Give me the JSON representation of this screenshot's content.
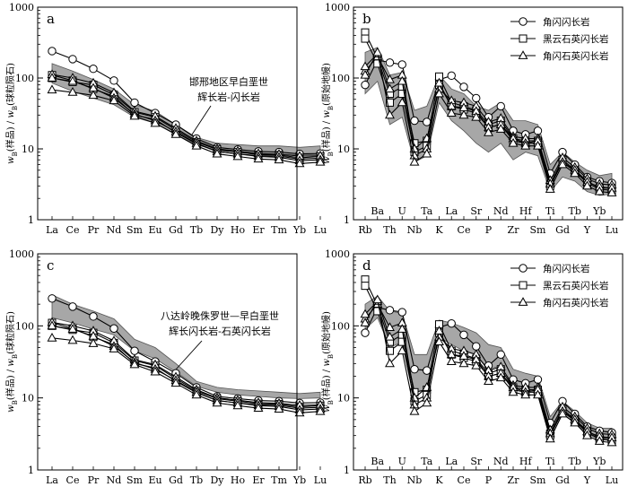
{
  "figure": {
    "colors": {
      "band": "#a7a7a7",
      "band_stroke": "#555555",
      "line": "#000000",
      "marker_fill": "#ffffff"
    }
  },
  "legend": {
    "entries": [
      {
        "label": "角闪闪长岩",
        "marker": "circle"
      },
      {
        "label": "黑云石英闪长岩",
        "marker": "square"
      },
      {
        "label": "角闪石英闪长岩",
        "marker": "triangle"
      }
    ]
  },
  "chart_data": [
    {
      "id": "a",
      "type": "line",
      "panel_label": "a",
      "xlabel": "",
      "ylabel": "wB(样品)/wB(球粒陨石)",
      "ylabel_parts": {
        "w": "w",
        "b1": "B",
        "mid": "(样品) / ",
        "w2": "w",
        "b2": "B",
        "end": "(球粒陨石)"
      },
      "yscale": "log",
      "ylim": [
        1,
        1000
      ],
      "yticks": [
        "1",
        "10",
        "100",
        "1000"
      ],
      "categories": [
        "La",
        "Ce",
        "Pr",
        "Nd",
        "Sm",
        "Eu",
        "Gd",
        "Tb",
        "Dy",
        "Ho",
        "Er",
        "Tm",
        "Yb",
        "Lu"
      ],
      "band": {
        "label_lines": [
          "邯邢地区早白垩世",
          "辉长岩-闪长岩"
        ],
        "upper": [
          160,
          125,
          95,
          70,
          42,
          34,
          22,
          14.5,
          12,
          11.5,
          11,
          11,
          10.5,
          11
        ],
        "lower": [
          85,
          65,
          52,
          42,
          28,
          23,
          16,
          11.5,
          9.5,
          9,
          8.6,
          8.5,
          8.2,
          8.3
        ]
      },
      "series": [
        {
          "name": "角闪闪长岩",
          "marker": "circle",
          "values": [
            240,
            185,
            135,
            92,
            45,
            32,
            22,
            14,
            10.5,
            9.8,
            9.2,
            9,
            8.5,
            8.6
          ]
        },
        {
          "name": "黑云石英闪长岩",
          "marker": "square",
          "values": [
            100,
            88,
            80,
            58,
            33,
            28,
            18.5,
            12.5,
            9.8,
            9,
            8.3,
            8.2,
            7.5,
            7.8
          ]
        },
        {
          "name": "黑云石英闪长岩",
          "marker": "square",
          "values": [
            110,
            92,
            70,
            55,
            30,
            26,
            17,
            11.8,
            9.2,
            8.5,
            8,
            7.9,
            7.2,
            7.4
          ]
        },
        {
          "name": "角闪石英闪长岩",
          "marker": "triangle",
          "values": [
            112,
            100,
            85,
            62,
            34,
            29,
            19.5,
            13,
            10,
            9.3,
            8.6,
            8.4,
            7.9,
            8
          ]
        },
        {
          "name": "角闪石英闪长岩",
          "marker": "triangle",
          "values": [
            100,
            90,
            72,
            52,
            31,
            25,
            17.5,
            12,
            9.2,
            8.5,
            7.8,
            7.6,
            6.8,
            7
          ]
        },
        {
          "name": "角闪石英闪长岩",
          "marker": "triangle",
          "values": [
            68,
            63,
            57,
            48,
            29,
            23,
            16,
            11,
            8.5,
            7.8,
            7.2,
            7,
            6.2,
            6.5
          ]
        }
      ]
    },
    {
      "id": "b",
      "type": "line",
      "panel_label": "b",
      "xlabel": "",
      "ylabel": "wB(样品)/wB(原始地幔)",
      "ylabel_parts": {
        "w": "w",
        "b1": "B",
        "mid": "(样品) / ",
        "w2": "w",
        "b2": "B",
        "end": "(原始地幔)"
      },
      "yscale": "log",
      "ylim": [
        1,
        1000
      ],
      "yticks": [
        "1",
        "10",
        "100",
        "1000"
      ],
      "categories": [
        "Rb",
        "Ba",
        "Th",
        "U",
        "Nb",
        "Ta",
        "K",
        "La",
        "Ce",
        "Sr",
        "P",
        "Nd",
        "Zr",
        "Hf",
        "Sm",
        "Ti",
        "Gd",
        "Tb",
        "Y",
        "Yb",
        "Lu"
      ],
      "top_labels": [
        "Ba",
        "U",
        "Ta",
        "La",
        "Sr",
        "Nd",
        "Hf",
        "Ti",
        "Tb",
        "Yb"
      ],
      "bottom_labels": [
        "Rb",
        "Th",
        "Nb",
        "K",
        "Ce",
        "P",
        "Zr",
        "Sm",
        "Gd",
        "Y",
        "Lu"
      ],
      "band": {
        "upper": [
          230,
          270,
          110,
          120,
          35,
          40,
          110,
          70,
          60,
          40,
          35,
          45,
          25,
          25,
          22,
          6,
          9,
          6.5,
          5,
          4.2,
          4.5
        ],
        "lower": [
          60,
          90,
          22,
          28,
          6.5,
          8,
          45,
          25,
          18,
          12,
          9,
          12,
          7,
          9,
          8,
          2.5,
          4,
          3.5,
          2.5,
          2.2,
          2.3
        ]
      },
      "series": [
        {
          "name": "角闪闪长岩",
          "marker": "circle",
          "values": [
            80,
            180,
            165,
            155,
            25,
            24,
            95,
            108,
            75,
            52,
            28,
            40,
            18,
            16,
            18,
            4.5,
            9,
            6,
            4,
            3.5,
            3.3
          ]
        },
        {
          "name": "黑云石英闪长岩",
          "marker": "square",
          "values": [
            440,
            190,
            60,
            75,
            12,
            13,
            105,
            45,
            40,
            35,
            22,
            25,
            14,
            13,
            13,
            3.2,
            7,
            5,
            3.5,
            2.8,
            2.8
          ]
        },
        {
          "name": "黑云石英闪长岩",
          "marker": "square",
          "values": [
            360,
            160,
            45,
            60,
            9,
            11,
            80,
            40,
            36,
            32,
            20,
            22,
            13,
            12,
            12,
            3,
            6.5,
            4.8,
            3.3,
            2.7,
            2.6
          ]
        },
        {
          "name": "角闪石英闪长岩",
          "marker": "triangle",
          "values": [
            125,
            200,
            95,
            110,
            10,
            14,
            70,
            48,
            45,
            40,
            24,
            27,
            15,
            14,
            14,
            3.6,
            7.5,
            5.5,
            3.8,
            3.2,
            3.1
          ]
        },
        {
          "name": "角闪石英闪长岩",
          "marker": "triangle",
          "values": [
            145,
            220,
            70,
            90,
            8,
            10,
            85,
            40,
            38,
            34,
            20,
            22,
            14,
            12,
            13,
            3.2,
            6.5,
            5,
            3.4,
            2.9,
            2.8
          ]
        },
        {
          "name": "角闪石英闪长岩",
          "marker": "triangle",
          "values": [
            110,
            230,
            30,
            45,
            6.5,
            8.5,
            60,
            32,
            30,
            28,
            17,
            19,
            12,
            11,
            11,
            2.7,
            6,
            4.5,
            3,
            2.5,
            2.4
          ]
        }
      ]
    },
    {
      "id": "c",
      "type": "line",
      "panel_label": "c",
      "xlabel": "",
      "ylabel": "wB(样品)/wB(球粒陨石)",
      "ylabel_parts": {
        "w": "w",
        "b1": "B",
        "mid": "(样品) / ",
        "w2": "w",
        "b2": "B",
        "end": "(球粒陨石)"
      },
      "yscale": "log",
      "ylim": [
        1,
        1000
      ],
      "yticks": [
        "1",
        "10",
        "100",
        "1000"
      ],
      "categories": [
        "La",
        "Ce",
        "Pr",
        "Nd",
        "Sm",
        "Eu",
        "Gd",
        "Tb",
        "Dy",
        "Ho",
        "Er",
        "Tm",
        "Yb",
        "Lu"
      ],
      "band": {
        "label_lines": [
          "八达岭晚侏罗世—早白垩世",
          "辉长闪长岩-石英闪长岩"
        ],
        "upper": [
          270,
          200,
          160,
          125,
          65,
          50,
          30,
          17,
          14,
          13,
          12.5,
          12,
          11.5,
          12
        ],
        "lower": [
          130,
          110,
          90,
          75,
          45,
          35,
          23,
          14.5,
          12,
          11,
          10.5,
          10,
          9.8,
          10
        ]
      },
      "series": [
        {
          "name": "角闪闪长岩",
          "marker": "circle",
          "values": [
            240,
            185,
            135,
            92,
            45,
            32,
            22,
            14,
            10.5,
            9.8,
            9.2,
            9,
            8.5,
            8.6
          ]
        },
        {
          "name": "黑云石英闪长岩",
          "marker": "square",
          "values": [
            100,
            88,
            80,
            58,
            33,
            28,
            18.5,
            12.5,
            9.8,
            9,
            8.3,
            8.2,
            7.5,
            7.8
          ]
        },
        {
          "name": "黑云石英闪长岩",
          "marker": "square",
          "values": [
            110,
            92,
            70,
            55,
            30,
            26,
            17,
            11.8,
            9.2,
            8.5,
            8,
            7.9,
            7.2,
            7.4
          ]
        },
        {
          "name": "角闪石英闪长岩",
          "marker": "triangle",
          "values": [
            112,
            100,
            85,
            62,
            34,
            29,
            19.5,
            13,
            10,
            9.3,
            8.6,
            8.4,
            7.9,
            8
          ]
        },
        {
          "name": "角闪石英闪长岩",
          "marker": "triangle",
          "values": [
            100,
            90,
            72,
            52,
            31,
            25,
            17.5,
            12,
            9.2,
            8.5,
            7.8,
            7.6,
            6.8,
            7
          ]
        },
        {
          "name": "角闪石英闪长岩",
          "marker": "triangle",
          "values": [
            68,
            63,
            57,
            48,
            29,
            23,
            16,
            11,
            8.5,
            7.8,
            7.2,
            7,
            6.2,
            6.5
          ]
        }
      ]
    },
    {
      "id": "d",
      "type": "line",
      "panel_label": "d",
      "xlabel": "",
      "ylabel": "wB(样品)/wB(原始地幔)",
      "ylabel_parts": {
        "w": "w",
        "b1": "B",
        "mid": "(样品) / ",
        "w2": "w",
        "b2": "B",
        "end": "(原始地幔)"
      },
      "yscale": "log",
      "ylim": [
        1,
        1000
      ],
      "yticks": [
        "1",
        "10",
        "100",
        "1000"
      ],
      "categories": [
        "Rb",
        "Ba",
        "Th",
        "U",
        "Nb",
        "Ta",
        "K",
        "La",
        "Ce",
        "Sr",
        "P",
        "Nd",
        "Zr",
        "Hf",
        "Sm",
        "Ti",
        "Gd",
        "Tb",
        "Y",
        "Yb",
        "Lu"
      ],
      "top_labels": [
        "Ba",
        "U",
        "Ta",
        "La",
        "Sr",
        "Nd",
        "Hf",
        "Ti",
        "Tb",
        "Yb"
      ],
      "bottom_labels": [
        "Rb",
        "Th",
        "Nb",
        "K",
        "Ce",
        "P",
        "Zr",
        "Sm",
        "Gd",
        "Y",
        "Lu"
      ],
      "band": {
        "upper": [
          200,
          260,
          160,
          150,
          40,
          40,
          120,
          110,
          95,
          80,
          55,
          50,
          25,
          22,
          20,
          5.5,
          9,
          6.5,
          4.5,
          3.8,
          3.8
        ],
        "lower": [
          90,
          130,
          50,
          60,
          12,
          13,
          70,
          55,
          45,
          40,
          25,
          28,
          14,
          13,
          12,
          3.5,
          6,
          4.5,
          3.2,
          2.6,
          2.6
        ]
      },
      "series": [
        {
          "name": "角闪闪长岩",
          "marker": "circle",
          "values": [
            80,
            180,
            165,
            155,
            25,
            24,
            95,
            108,
            75,
            52,
            28,
            40,
            18,
            16,
            18,
            4.5,
            9,
            6,
            4,
            3.5,
            3.3
          ]
        },
        {
          "name": "黑云石英闪长岩",
          "marker": "square",
          "values": [
            440,
            190,
            60,
            75,
            12,
            13,
            105,
            45,
            40,
            35,
            22,
            25,
            14,
            13,
            13,
            3.2,
            7,
            5,
            3.5,
            2.8,
            2.8
          ]
        },
        {
          "name": "黑云石英闪长岩",
          "marker": "square",
          "values": [
            360,
            160,
            45,
            60,
            9,
            11,
            80,
            40,
            36,
            32,
            20,
            22,
            13,
            12,
            12,
            3,
            6.5,
            4.8,
            3.3,
            2.7,
            2.6
          ]
        },
        {
          "name": "角闪石英闪长岩",
          "marker": "triangle",
          "values": [
            125,
            200,
            95,
            110,
            10,
            14,
            70,
            48,
            45,
            40,
            24,
            27,
            15,
            14,
            14,
            3.6,
            7.5,
            5.5,
            3.8,
            3.2,
            3.1
          ]
        },
        {
          "name": "角闪石英闪长岩",
          "marker": "triangle",
          "values": [
            145,
            220,
            70,
            90,
            8,
            10,
            85,
            40,
            38,
            34,
            20,
            22,
            14,
            12,
            13,
            3.2,
            6.5,
            5,
            3.4,
            2.9,
            2.8
          ]
        },
        {
          "name": "角闪石英闪长岩",
          "marker": "triangle",
          "values": [
            110,
            230,
            30,
            45,
            6.5,
            8.5,
            60,
            32,
            30,
            28,
            17,
            19,
            12,
            11,
            11,
            2.7,
            6,
            4.5,
            3,
            2.5,
            2.4
          ]
        }
      ]
    }
  ]
}
